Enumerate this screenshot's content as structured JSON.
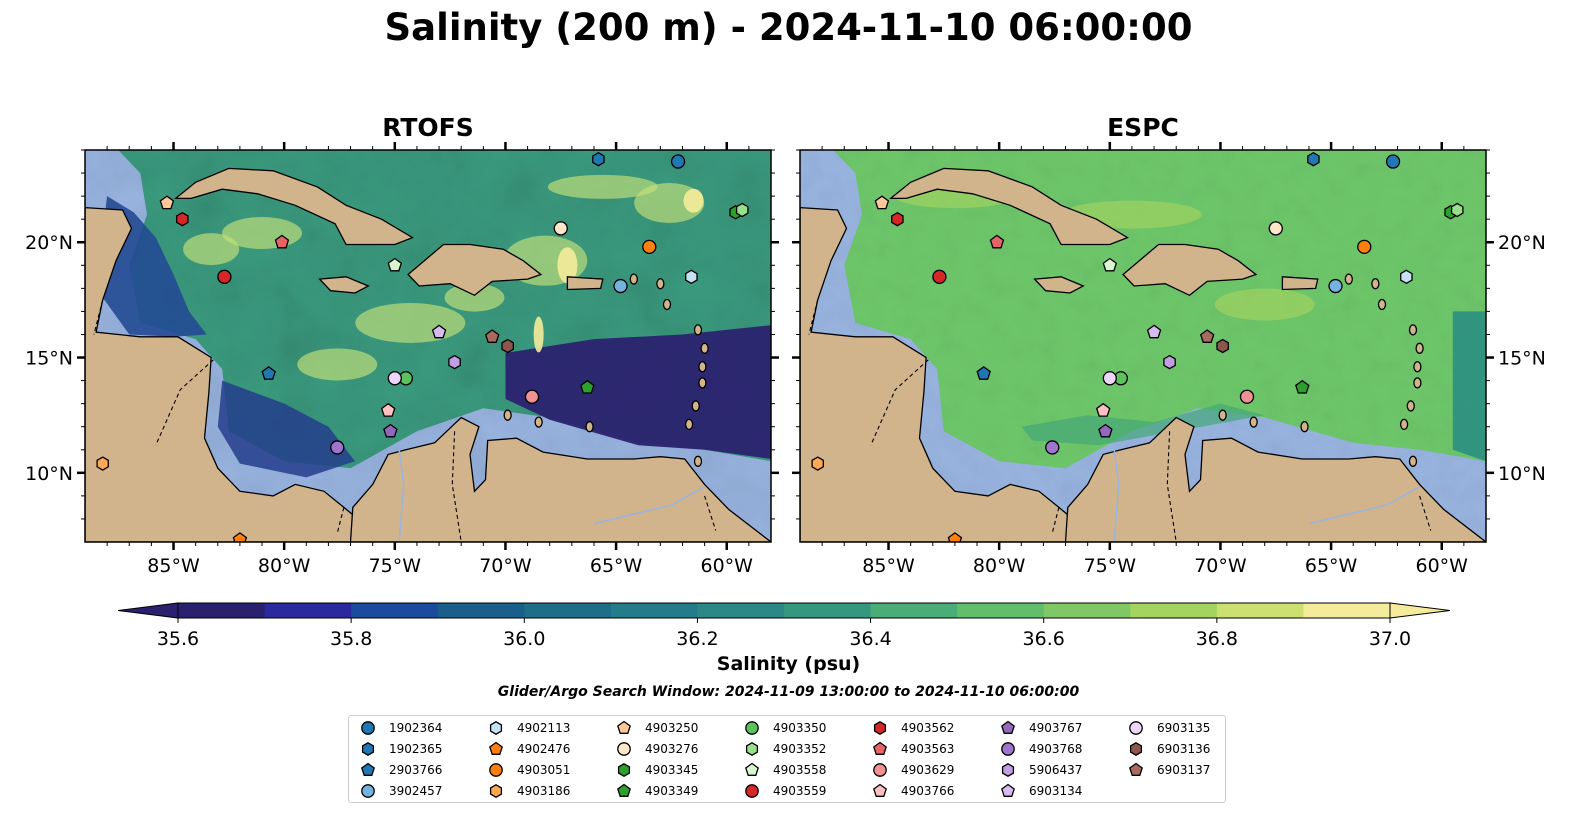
{
  "figure": {
    "title": "Salinity (200 m) - 2024-11-10 06:00:00",
    "search_window": "Glider/Argo Search Window: 2024-11-09 13:00:00 to 2024-11-10 06:00:00"
  },
  "chart_data": [
    {
      "type": "heatmap",
      "title": "RTOFS",
      "variable": "Salinity (200 m)",
      "x_ticks": [
        "85°W",
        "80°W",
        "75°W",
        "70°W",
        "65°W",
        "60°W"
      ],
      "x_tick_values": [
        -85,
        -80,
        -75,
        -70,
        -65,
        -60
      ],
      "y_ticks": [
        "20°N",
        "15°N",
        "10°N"
      ],
      "y_tick_values": [
        20,
        15,
        10
      ],
      "xlim": [
        -89,
        -58
      ],
      "ylim": [
        7,
        24
      ],
      "y_tick_side": "left",
      "field_notes": "low salinity (<35.6) in the southeast Caribbean and Pacific, high salinity (36.6–37.0) eddies in the central and northern Caribbean"
    },
    {
      "type": "heatmap",
      "title": "ESPC",
      "variable": "Salinity (200 m)",
      "x_ticks": [
        "85°W",
        "80°W",
        "75°W",
        "70°W",
        "65°W",
        "60°W"
      ],
      "x_tick_values": [
        -85,
        -80,
        -75,
        -70,
        -65,
        -60
      ],
      "y_ticks": [
        "20°N",
        "15°N",
        "10°N"
      ],
      "y_tick_values": [
        20,
        15,
        10
      ],
      "xlim": [
        -89,
        -58
      ],
      "ylim": [
        7,
        24
      ],
      "y_tick_side": "right",
      "field_notes": "mostly uniform 36.4–36.7 across the Caribbean"
    }
  ],
  "colorbar": {
    "label": "Salinity (psu)",
    "min": 35.6,
    "max": 37.0,
    "step": 0.1,
    "ticks": [
      "35.6",
      "35.8",
      "36.0",
      "36.2",
      "36.4",
      "36.6",
      "36.8",
      "37.0"
    ],
    "tick_values": [
      35.6,
      35.8,
      36.0,
      36.2,
      36.4,
      36.6,
      36.8,
      37.0
    ],
    "extend": "both",
    "colors": [
      "#29206e",
      "#2a2a9e",
      "#1b4b9c",
      "#1a5f8c",
      "#1e6e8a",
      "#247b89",
      "#2b8886",
      "#34987f",
      "#4aac76",
      "#63be6c",
      "#80c765",
      "#a5d35f",
      "#cbe070",
      "#f4ec9a"
    ]
  },
  "colors": {
    "land": "#d2b48c",
    "shelf_water": "#98b4e0"
  },
  "floats": [
    {
      "id": "1902364",
      "color": "#1f77b4",
      "marker": "circle",
      "lon": -62.2,
      "lat": 23.5
    },
    {
      "id": "1902365",
      "color": "#1f77b4",
      "marker": "hexagon",
      "lon": -65.8,
      "lat": 23.6
    },
    {
      "id": "2903766",
      "color": "#1f77b4",
      "marker": "pentagon",
      "lon": -80.7,
      "lat": 14.3
    },
    {
      "id": "3902457",
      "color": "#74b2e0",
      "marker": "circle",
      "lon": -64.8,
      "lat": 18.1
    },
    {
      "id": "4902113",
      "color": "#c6e2f7",
      "marker": "hexagon",
      "lon": -61.6,
      "lat": 18.5
    },
    {
      "id": "4902476",
      "color": "#ff7f0e",
      "marker": "pentagon",
      "lon": -82.0,
      "lat": 7.1
    },
    {
      "id": "4903051",
      "color": "#ff7f0e",
      "marker": "circle",
      "lon": -63.5,
      "lat": 19.8
    },
    {
      "id": "4903186",
      "color": "#ffa751",
      "marker": "hexagon",
      "lon": -88.2,
      "lat": 10.4
    },
    {
      "id": "4903250",
      "color": "#ffc896",
      "marker": "pentagon",
      "lon": -85.3,
      "lat": 21.7
    },
    {
      "id": "4903276",
      "color": "#ffe6c8",
      "marker": "circle",
      "lon": -67.5,
      "lat": 20.6
    },
    {
      "id": "4903345",
      "color": "#2ca02c",
      "marker": "hexagon",
      "lon": -59.6,
      "lat": 21.3
    },
    {
      "id": "4903349",
      "color": "#2ca02c",
      "marker": "pentagon",
      "lon": -66.3,
      "lat": 13.7
    },
    {
      "id": "4903350",
      "color": "#5cc25c",
      "marker": "circle",
      "lon": -74.5,
      "lat": 14.1
    },
    {
      "id": "4903352",
      "color": "#98df8a",
      "marker": "hexagon",
      "lon": -59.3,
      "lat": 21.4
    },
    {
      "id": "4903558",
      "color": "#d8f7cf",
      "marker": "pentagon",
      "lon": -75.0,
      "lat": 19.0
    },
    {
      "id": "4903559",
      "color": "#d62728",
      "marker": "circle",
      "lon": -82.7,
      "lat": 18.5
    },
    {
      "id": "4903562",
      "color": "#d62728",
      "marker": "hexagon",
      "lon": -84.6,
      "lat": 21.0
    },
    {
      "id": "4903563",
      "color": "#e86464",
      "marker": "pentagon",
      "lon": -80.1,
      "lat": 20.0
    },
    {
      "id": "4903629",
      "color": "#f29191",
      "marker": "circle",
      "lon": -68.8,
      "lat": 13.3
    },
    {
      "id": "4903766",
      "color": "#ffc0c0",
      "marker": "pentagon",
      "lon": -75.3,
      "lat": 12.7
    },
    {
      "id": "4903767",
      "color": "#9467bd",
      "marker": "pentagon",
      "lon": -75.2,
      "lat": 11.8
    },
    {
      "id": "4903768",
      "color": "#9f74cc",
      "marker": "circle",
      "lon": -77.6,
      "lat": 11.1
    },
    {
      "id": "5906437",
      "color": "#c0a0e3",
      "marker": "hexagon",
      "lon": -72.3,
      "lat": 14.8
    },
    {
      "id": "6903134",
      "color": "#d6bbf0",
      "marker": "pentagon",
      "lon": -73.0,
      "lat": 16.1
    },
    {
      "id": "6903135",
      "color": "#ecd6fa",
      "marker": "circle",
      "lon": -75.0,
      "lat": 14.1
    },
    {
      "id": "6903136",
      "color": "#8c564b",
      "marker": "hexagon",
      "lon": -69.9,
      "lat": 15.5
    },
    {
      "id": "6903137",
      "color": "#a86b5e",
      "marker": "pentagon",
      "lon": -70.6,
      "lat": 15.9
    }
  ]
}
